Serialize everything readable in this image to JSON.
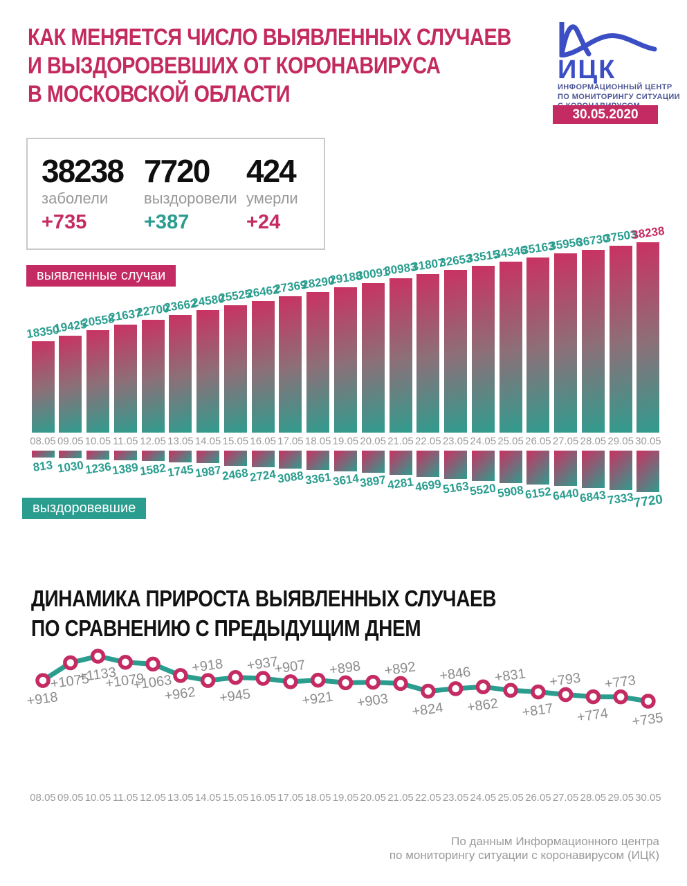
{
  "header": {
    "title_lines": [
      "КАК МЕНЯЕТСЯ ЧИСЛО ВЫЯВЛЕННЫХ СЛУЧАЕВ",
      "И ВЫЗДОРОВЕВШИХ ОТ КОРОНАВИРУСА",
      "В МОСКОВСКОЙ ОБЛАСТИ"
    ],
    "logo": {
      "abbr": "ИЦК",
      "subtitle_lines": [
        "ИНФОРМАЦИОННЫЙ ЦЕНТР",
        "ПО МОНИТОРИНГУ СИТУАЦИИ",
        "С КОРОНАВИРУСОМ"
      ],
      "date_badge": "30.05.2020"
    }
  },
  "stats": [
    {
      "value": "38238",
      "label": "заболели",
      "delta": "+735"
    },
    {
      "value": "7720",
      "label": "выздоровели",
      "delta": "+387"
    },
    {
      "value": "424",
      "label": "умерли",
      "delta": "+24"
    }
  ],
  "badges": {
    "detected": "выявленные случаи",
    "recovered": "выздоровевшие"
  },
  "section2": {
    "title_lines": [
      "ДИНАМИКА ПРИРОСТА ВЫЯВЛЕННЫХ СЛУЧАЕВ",
      "ПО СРАВНЕНИЮ С ПРЕДЫДУЩИМ ДНЕМ"
    ]
  },
  "footer": {
    "lines": [
      "По данным Информационного центра",
      "по мониторингу ситуации с коронавирусом (ИЦК)"
    ]
  },
  "colors": {
    "crimson": "#c42b62",
    "teal": "#2a9d8f",
    "logo_blue": "#3b4ec4",
    "gray_text": "#9a9a9a",
    "point_label_gray": "#8c8c8c",
    "bar_gradient_top": "#ca3162",
    "bar_gradient_bottom": "#2f9c8e"
  },
  "chart_data": [
    {
      "type": "bar",
      "title": "выявленные случаи",
      "categories": [
        "08.05",
        "09.05",
        "10.05",
        "11.05",
        "12.05",
        "13.05",
        "14.05",
        "15.05",
        "16.05",
        "17.05",
        "18.05",
        "19.05",
        "20.05",
        "21.05",
        "22.05",
        "23.05",
        "24.05",
        "25.05",
        "26.05",
        "27.05",
        "28.05",
        "29.05",
        "30.05"
      ],
      "values": [
        18350,
        19425,
        20558,
        21637,
        22700,
        23662,
        24580,
        25525,
        26462,
        27369,
        28290,
        29188,
        30091,
        30983,
        31807,
        32653,
        33515,
        34346,
        35163,
        35956,
        36730,
        37503,
        38238
      ],
      "xlabel": "",
      "ylabel": "",
      "ylim": [
        0,
        38238
      ],
      "grid": false,
      "legend": "badge-above-left",
      "direction": "up"
    },
    {
      "type": "bar",
      "title": "выздоровевшие",
      "categories": [
        "08.05",
        "09.05",
        "10.05",
        "11.05",
        "12.05",
        "13.05",
        "14.05",
        "15.05",
        "16.05",
        "17.05",
        "18.05",
        "19.05",
        "20.05",
        "21.05",
        "22.05",
        "23.05",
        "24.05",
        "25.05",
        "26.05",
        "27.05",
        "28.05",
        "29.05",
        "30.05"
      ],
      "values": [
        813,
        1030,
        1236,
        1389,
        1582,
        1745,
        1987,
        2468,
        2724,
        3088,
        3361,
        3614,
        3897,
        4281,
        4699,
        5163,
        5520,
        5908,
        6152,
        6440,
        6843,
        7333,
        7720
      ],
      "xlabel": "",
      "ylabel": "",
      "ylim": [
        0,
        7720
      ],
      "grid": false,
      "legend": "badge-below-left",
      "direction": "down"
    },
    {
      "type": "line",
      "title": "ДИНАМИКА ПРИРОСТА ВЫЯВЛЕННЫХ СЛУЧАЕВ ПО СРАВНЕНИЮ С ПРЕДЫДУЩИМ ДНЕМ",
      "categories": [
        "08.05",
        "09.05",
        "10.05",
        "11.05",
        "12.05",
        "13.05",
        "14.05",
        "15.05",
        "16.05",
        "17.05",
        "18.05",
        "19.05",
        "20.05",
        "21.05",
        "22.05",
        "23.05",
        "24.05",
        "25.05",
        "26.05",
        "27.05",
        "28.05",
        "29.05",
        "30.05"
      ],
      "values": [
        918,
        1075,
        1133,
        1079,
        1063,
        962,
        918,
        945,
        937,
        907,
        921,
        898,
        903,
        892,
        824,
        846,
        862,
        831,
        817,
        793,
        774,
        773,
        735
      ],
      "point_labels": [
        "+918",
        "+1075",
        "+1133",
        "+1079",
        "+1063",
        "+962",
        "+918",
        "+945",
        "+937",
        "+907",
        "+921",
        "+898",
        "+903",
        "+892",
        "+824",
        "+846",
        "+862",
        "+831",
        "+817",
        "+793",
        "+774",
        "+773",
        "+735"
      ],
      "label_side": [
        "below",
        "below",
        "below",
        "below",
        "below",
        "below",
        "above",
        "below",
        "above",
        "above",
        "below",
        "above",
        "below",
        "above",
        "below",
        "above",
        "below",
        "above",
        "below",
        "above",
        "below",
        "above",
        "below"
      ],
      "xlabel": "",
      "ylabel": "",
      "ylim": [
        700,
        1150
      ],
      "grid": false,
      "legend": "none"
    }
  ]
}
